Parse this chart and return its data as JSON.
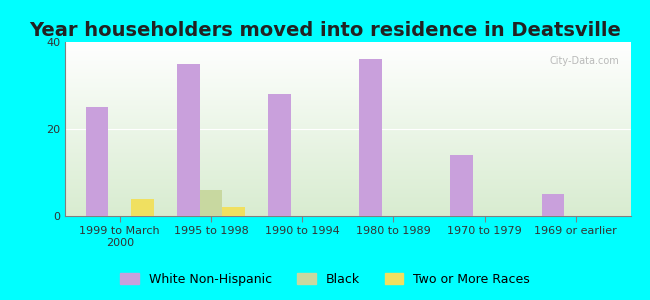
{
  "title": "Year householders moved into residence in Deatsville",
  "categories": [
    "1999 to March\n2000",
    "1995 to 1998",
    "1990 to 1994",
    "1980 to 1989",
    "1970 to 1979",
    "1969 or earlier"
  ],
  "white_non_hispanic": [
    25,
    35,
    28,
    36,
    14,
    5
  ],
  "black": [
    0,
    6,
    0,
    0,
    0,
    0
  ],
  "two_or_more_races": [
    4,
    2,
    0,
    0,
    0,
    0
  ],
  "white_color": "#c9a0dc",
  "black_color": "#c8d8a0",
  "two_or_more_color": "#f0e060",
  "ylim": [
    0,
    40
  ],
  "yticks": [
    0,
    20,
    40
  ],
  "background_outer": "#00ffff",
  "background_inner_top": "#ffffff",
  "background_inner_bottom": "#d8ecd0",
  "bar_width": 0.25,
  "title_fontsize": 14,
  "tick_label_fontsize": 8,
  "legend_fontsize": 9
}
